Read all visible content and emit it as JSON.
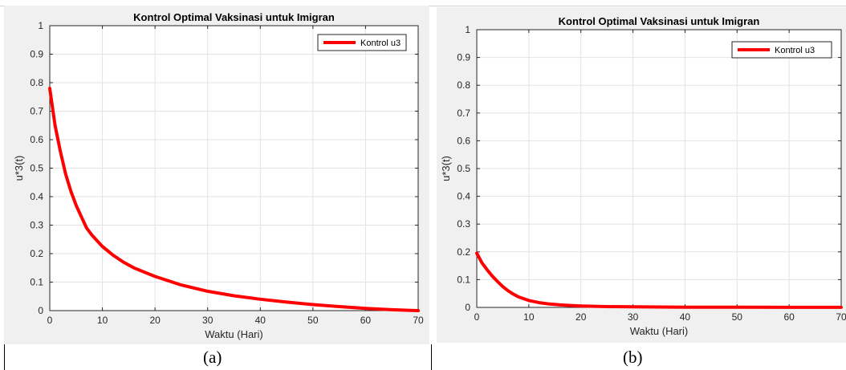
{
  "chart_data": [
    {
      "type": "line",
      "title": "Kontrol Optimal Vaksinasi untuk Imigran",
      "xlabel": "Waktu (Hari)",
      "ylabel": "u*3(t)",
      "xlim": [
        0,
        70
      ],
      "ylim": [
        0,
        1
      ],
      "xticks": [
        "0",
        "10",
        "20",
        "30",
        "40",
        "50",
        "60",
        "70"
      ],
      "yticks": [
        "0",
        "0.1",
        "0.2",
        "0.3",
        "0.4",
        "0.5",
        "0.6",
        "0.7",
        "0.8",
        "0.9",
        "1"
      ],
      "grid": true,
      "legend": "top-right",
      "series": [
        {
          "name": "Kontrol u3",
          "color": "#ff0000",
          "x": [
            0,
            1,
            2,
            3,
            4,
            5,
            6,
            7,
            8,
            9,
            10,
            12,
            14,
            16,
            18,
            20,
            25,
            30,
            35,
            40,
            45,
            50,
            55,
            60,
            65,
            70
          ],
          "y": [
            0.78,
            0.65,
            0.56,
            0.48,
            0.42,
            0.37,
            0.33,
            0.29,
            0.265,
            0.245,
            0.225,
            0.195,
            0.17,
            0.15,
            0.135,
            0.12,
            0.09,
            0.068,
            0.052,
            0.04,
            0.03,
            0.021,
            0.014,
            0.008,
            0.003,
            0.0
          ]
        }
      ]
    },
    {
      "type": "line",
      "title": "Kontrol Optimal Vaksinasi untuk Imigran",
      "xlabel": "Waktu (Hari)",
      "ylabel": "u*3(t)",
      "xlim": [
        0,
        70
      ],
      "ylim": [
        0,
        1
      ],
      "xticks": [
        "0",
        "10",
        "20",
        "30",
        "40",
        "50",
        "60",
        "70"
      ],
      "yticks": [
        "0",
        "0.1",
        "0.2",
        "0.3",
        "0.4",
        "0.5",
        "0.6",
        "0.7",
        "0.8",
        "0.9",
        "1"
      ],
      "grid": true,
      "legend": "top-right",
      "series": [
        {
          "name": "Kontrol u3",
          "color": "#ff0000",
          "x": [
            0,
            1,
            2,
            3,
            4,
            5,
            6,
            7,
            8,
            10,
            12,
            14,
            16,
            18,
            20,
            25,
            30,
            40,
            50,
            60,
            70
          ],
          "y": [
            0.195,
            0.16,
            0.135,
            0.112,
            0.093,
            0.075,
            0.06,
            0.048,
            0.038,
            0.025,
            0.017,
            0.012,
            0.009,
            0.007,
            0.005,
            0.003,
            0.002,
            0.001,
            0.0005,
            0.0003,
            0.0002
          ]
        }
      ]
    }
  ],
  "captions": [
    "(a)",
    "(b)"
  ]
}
